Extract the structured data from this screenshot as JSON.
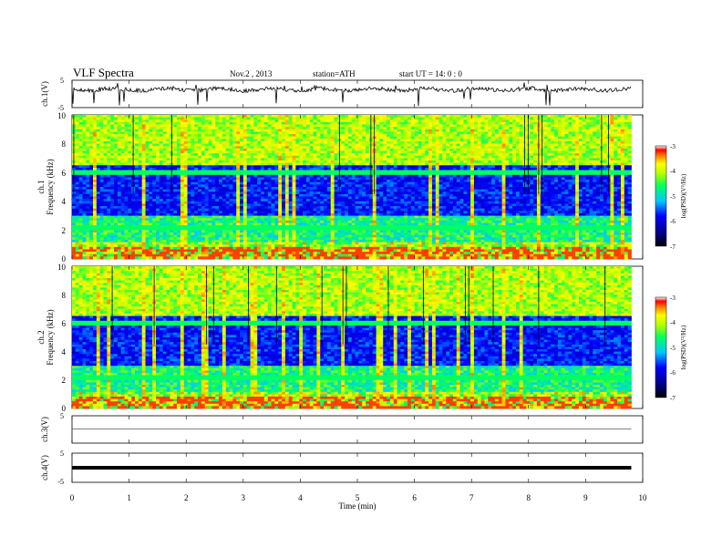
{
  "header": {
    "title": "VLF Spectra",
    "date": "Nov.2 , 2013",
    "station": "station=ATH",
    "start_time": "start UT = 14: 0 : 0"
  },
  "chart_data": {
    "type": "heatmap",
    "xlabel": "Time (min)",
    "x_range": [
      0,
      10
    ],
    "x_ticks": [
      "0",
      "1",
      "2",
      "3",
      "4",
      "5",
      "6",
      "7",
      "8",
      "9",
      "10"
    ],
    "panels": [
      {
        "id": "ch1",
        "type": "line",
        "ylabel": "ch.1(V)",
        "ylim": [
          -5,
          5
        ],
        "y_ticks": [
          "5",
          "-5"
        ],
        "baseline": 1.6,
        "x_end": 9.8
      },
      {
        "id": "ch1-spec",
        "type": "heatmap",
        "ylabel_top": "ch.1",
        "ylabel": "Frequency (kHz)",
        "ylim": [
          0,
          10
        ],
        "y_ticks": [
          "0",
          "2",
          "4",
          "6",
          "8",
          "10"
        ],
        "x_end": 9.8,
        "colorbar": {
          "label": "log(PSD)(V²/Hz)",
          "range": [
            -7,
            -3
          ],
          "ticks": [
            "-3",
            "-4",
            "-5",
            "-6",
            "-7"
          ]
        }
      },
      {
        "id": "ch2-spec",
        "type": "heatmap",
        "ylabel_top": "ch.2",
        "ylabel": "Frequency (kHz)",
        "ylim": [
          0,
          10
        ],
        "y_ticks": [
          "0",
          "2",
          "4",
          "6",
          "8",
          "10"
        ],
        "x_end": 9.8,
        "colorbar": {
          "label": "log(PSD)(V²/Hz)",
          "range": [
            -7,
            -3
          ],
          "ticks": [
            "-3",
            "-4",
            "-5",
            "-6",
            "-7"
          ]
        }
      },
      {
        "id": "ch3",
        "type": "line",
        "ylabel": "ch.3(V)",
        "ylim": [
          -5,
          5
        ],
        "y_ticks": [
          "5"
        ],
        "baseline": 0.2,
        "x_end": 9.8
      },
      {
        "id": "ch4",
        "type": "line",
        "ylabel": "ch.4(V)",
        "ylim": [
          -5,
          5
        ],
        "y_ticks": [
          "5",
          "-5"
        ],
        "baseline": 0,
        "x_end": 9.8
      }
    ]
  }
}
